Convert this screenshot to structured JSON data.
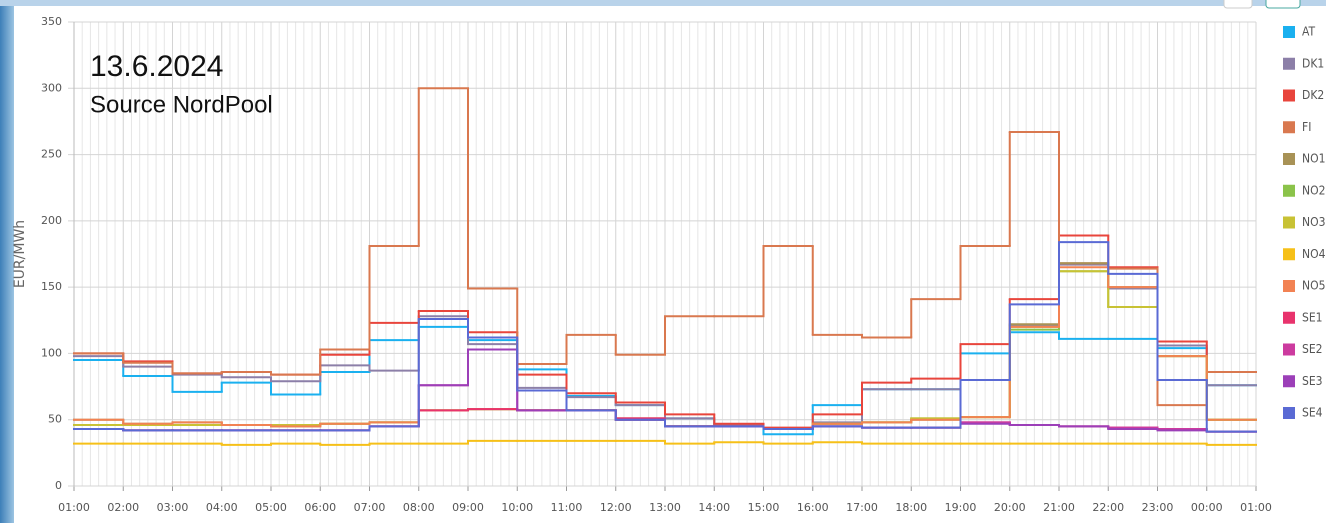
{
  "chart_data": {
    "type": "step",
    "annotations": [
      "13.6.2024",
      "Source NordPool"
    ],
    "y_label": "EUR/MWh",
    "xticks": [
      "01:00",
      "02:00",
      "03:00",
      "04:00",
      "05:00",
      "06:00",
      "07:00",
      "08:00",
      "09:00",
      "10:00",
      "11:00",
      "12:00",
      "13:00",
      "14:00",
      "15:00",
      "16:00",
      "17:00",
      "18:00",
      "19:00",
      "20:00",
      "21:00",
      "22:00",
      "23:00",
      "00:00",
      "01:00"
    ],
    "ylim": [
      0,
      350
    ],
    "yticks": [
      0,
      50,
      100,
      150,
      200,
      250,
      300,
      350
    ],
    "grid": true,
    "series": [
      {
        "name": "AT",
        "color": "#1ab0ef",
        "values": [
          95,
          83,
          71,
          78,
          69,
          86,
          110,
          120,
          110,
          88,
          68,
          61,
          51,
          45,
          39,
          61,
          73,
          73,
          100,
          116,
          111,
          111,
          104,
          76
        ]
      },
      {
        "name": "DK1",
        "color": "#8c7fa8",
        "values": [
          98,
          90,
          84,
          82,
          79,
          91,
          87,
          128,
          107,
          74,
          67,
          61,
          51,
          46,
          43,
          48,
          73,
          73,
          80,
          121,
          167,
          149,
          106,
          76
        ]
      },
      {
        "name": "DK2",
        "color": "#e8453c",
        "values": [
          100,
          94,
          85,
          86,
          84,
          99,
          123,
          132,
          116,
          84,
          70,
          63,
          54,
          47,
          44,
          54,
          78,
          81,
          107,
          141,
          189,
          165,
          109,
          86
        ]
      },
      {
        "name": "FI",
        "color": "#d9784f",
        "values": [
          100,
          93,
          85,
          86,
          84,
          103,
          181,
          300,
          149,
          92,
          114,
          99,
          128,
          128,
          181,
          114,
          112,
          141,
          181,
          267,
          168,
          164,
          61,
          86
        ]
      },
      {
        "name": "NO1",
        "color": "#a89256",
        "values": [
          50,
          47,
          48,
          46,
          45,
          47,
          48,
          57,
          58,
          57,
          57,
          51,
          45,
          45,
          43,
          47,
          48,
          50,
          52,
          122,
          168,
          150,
          98,
          50
        ]
      },
      {
        "name": "NO2",
        "color": "#8bc34a",
        "values": [
          46,
          46,
          46,
          46,
          46,
          47,
          48,
          57,
          58,
          57,
          57,
          50,
          45,
          45,
          43,
          47,
          48,
          51,
          52,
          118,
          162,
          135,
          98,
          50
        ]
      },
      {
        "name": "NO3",
        "color": "#c8c234",
        "values": [
          46,
          46,
          46,
          46,
          46,
          47,
          48,
          57,
          58,
          57,
          57,
          50,
          45,
          45,
          43,
          47,
          48,
          51,
          52,
          120,
          162,
          135,
          98,
          50
        ]
      },
      {
        "name": "NO4",
        "color": "#f6c018",
        "values": [
          32,
          32,
          32,
          31,
          32,
          31,
          32,
          32,
          34,
          34,
          34,
          34,
          32,
          33,
          32,
          33,
          32,
          32,
          32,
          32,
          32,
          32,
          32,
          31
        ]
      },
      {
        "name": "NO5",
        "color": "#f28253",
        "values": [
          50,
          47,
          48,
          46,
          45,
          47,
          48,
          57,
          58,
          57,
          57,
          51,
          45,
          45,
          43,
          47,
          48,
          50,
          52,
          120,
          165,
          150,
          98,
          50
        ]
      },
      {
        "name": "SE1",
        "color": "#e8336d",
        "values": [
          43,
          42,
          42,
          42,
          42,
          42,
          45,
          57,
          58,
          57,
          57,
          51,
          45,
          45,
          43,
          45,
          44,
          44,
          48,
          46,
          45,
          44,
          43,
          41
        ]
      },
      {
        "name": "SE2",
        "color": "#cc3b9f",
        "values": [
          43,
          42,
          42,
          42,
          42,
          42,
          45,
          76,
          103,
          57,
          57,
          50,
          45,
          45,
          43,
          45,
          44,
          44,
          48,
          46,
          45,
          44,
          43,
          41
        ]
      },
      {
        "name": "SE3",
        "color": "#9c3fb8",
        "values": [
          43,
          42,
          42,
          42,
          42,
          42,
          45,
          76,
          103,
          57,
          57,
          50,
          45,
          45,
          43,
          45,
          44,
          44,
          47,
          46,
          45,
          43,
          42,
          41
        ]
      },
      {
        "name": "SE4",
        "color": "#5a6ad4",
        "values": [
          43,
          42,
          42,
          42,
          42,
          42,
          45,
          126,
          112,
          72,
          57,
          50,
          45,
          45,
          43,
          45,
          44,
          44,
          80,
          137,
          184,
          160,
          80,
          41
        ]
      }
    ]
  }
}
